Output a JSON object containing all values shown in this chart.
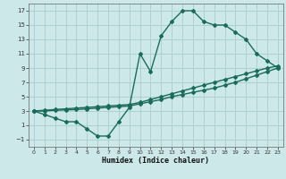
{
  "title": "",
  "xlabel": "Humidex (Indice chaleur)",
  "bg_color": "#cce8e8",
  "grid_color": "#aacccc",
  "line_color": "#1a6b5a",
  "xlim": [
    -0.5,
    23.5
  ],
  "ylim": [
    -2,
    18
  ],
  "xticks": [
    0,
    1,
    2,
    3,
    4,
    5,
    6,
    7,
    8,
    9,
    10,
    11,
    12,
    13,
    14,
    15,
    16,
    17,
    18,
    19,
    20,
    21,
    22,
    23
  ],
  "yticks": [
    -1,
    1,
    3,
    5,
    7,
    9,
    11,
    13,
    15,
    17
  ],
  "line1_x": [
    0,
    1,
    2,
    3,
    4,
    5,
    6,
    7,
    8,
    9,
    10,
    11,
    12,
    13,
    14,
    15,
    16,
    17,
    18,
    19,
    20,
    21,
    22,
    23
  ],
  "line1_y": [
    3.0,
    2.5,
    2.0,
    1.5,
    1.5,
    0.5,
    -0.5,
    -0.5,
    1.5,
    3.5,
    11.0,
    8.5,
    13.5,
    15.5,
    17.0,
    17.0,
    15.5,
    15.0,
    15.0,
    14.0,
    13.0,
    11.0,
    10.0,
    9.0
  ],
  "line2_x": [
    0,
    1,
    2,
    3,
    4,
    5,
    6,
    7,
    8,
    9,
    10,
    11,
    12,
    13,
    14,
    15,
    16,
    17,
    18,
    19,
    20,
    21,
    22,
    23
  ],
  "line2_y": [
    3.0,
    3.1,
    3.2,
    3.3,
    3.4,
    3.5,
    3.6,
    3.7,
    3.8,
    3.9,
    4.2,
    4.6,
    5.0,
    5.4,
    5.8,
    6.2,
    6.6,
    7.0,
    7.4,
    7.8,
    8.2,
    8.6,
    9.0,
    9.3
  ],
  "line3_x": [
    0,
    1,
    2,
    3,
    4,
    5,
    6,
    7,
    8,
    9,
    10,
    11,
    12,
    13,
    14,
    15,
    16,
    17,
    18,
    19,
    20,
    21,
    22,
    23
  ],
  "line3_y": [
    3.0,
    3.0,
    3.1,
    3.15,
    3.2,
    3.3,
    3.4,
    3.5,
    3.6,
    3.7,
    4.0,
    4.3,
    4.6,
    5.0,
    5.3,
    5.6,
    5.9,
    6.2,
    6.6,
    7.0,
    7.5,
    8.0,
    8.5,
    9.0
  ]
}
